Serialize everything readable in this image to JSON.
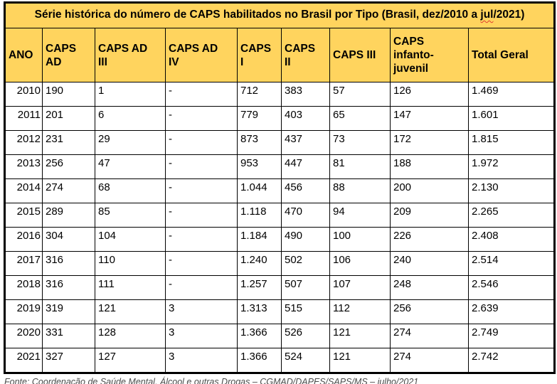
{
  "title": {
    "text_before": "Série histórica do número de CAPS habilitados no Brasil por Tipo (Brasil, dez/2010 a ",
    "spellcheck_word": "jul",
    "text_after": "/2021)"
  },
  "table": {
    "columns": [
      "ANO",
      "CAPS\nAD",
      "CAPS AD\nIII",
      "CAPS AD\nIV",
      "CAPS\nI",
      "CAPS\nII",
      "CAPS III",
      "CAPS\ninfanto-\njuvenil",
      "Total Geral"
    ],
    "rows": [
      [
        "2010",
        "190",
        "1",
        "-",
        "712",
        "383",
        "57",
        "126",
        "1.469"
      ],
      [
        "2011",
        "201",
        "6",
        "-",
        "779",
        "403",
        "65",
        "147",
        "1.601"
      ],
      [
        "2012",
        "231",
        "29",
        "-",
        "873",
        "437",
        "73",
        "172",
        "1.815"
      ],
      [
        "2013",
        "256",
        "47",
        "-",
        "953",
        "447",
        "81",
        "188",
        "1.972"
      ],
      [
        "2014",
        "274",
        "68",
        "-",
        "1.044",
        "456",
        "88",
        "200",
        "2.130"
      ],
      [
        "2015",
        "289",
        "85",
        "-",
        "1.118",
        "470",
        "94",
        "209",
        "2.265"
      ],
      [
        "2016",
        "304",
        "104",
        "-",
        "1.184",
        "490",
        "100",
        "226",
        "2.408"
      ],
      [
        "2017",
        "316",
        "110",
        "-",
        "1.240",
        "502",
        "106",
        "240",
        "2.514"
      ],
      [
        "2018",
        "316",
        "111",
        "-",
        "1.257",
        "507",
        "107",
        "248",
        "2.546"
      ],
      [
        "2019",
        "319",
        "121",
        "3",
        "1.313",
        "515",
        "112",
        "256",
        "2.639"
      ],
      [
        "2020",
        "331",
        "128",
        "3",
        "1.366",
        "526",
        "121",
        "274",
        "2.749"
      ],
      [
        "2021",
        "327",
        "127",
        "3",
        "1.366",
        "524",
        "121",
        "274",
        "2.742"
      ]
    ]
  },
  "footer": {
    "source": "Fonte: Coordenação de Saúde Mental, Álcool e outras Drogas – CGMAD/DAPES/SAPS/MS – julho/2021"
  },
  "colors": {
    "header_bg": "#FFD45E",
    "border": "#000000",
    "spellcheck_underline": "#E03C31",
    "footer_text": "#4A4A4A"
  }
}
